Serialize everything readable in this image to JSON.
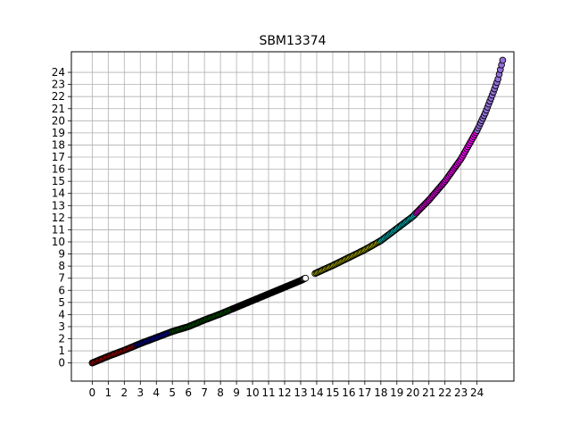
{
  "chart_data": {
    "type": "scatter",
    "title": "SBM13374",
    "xlabel": "",
    "ylabel": "",
    "xlim": [
      -1.3,
      26.3
    ],
    "ylim": [
      -1.5,
      25.7
    ],
    "x_ticks": [
      0,
      1,
      2,
      3,
      4,
      5,
      6,
      7,
      8,
      9,
      10,
      11,
      12,
      13,
      14,
      15,
      16,
      17,
      18,
      19,
      20,
      21,
      22,
      23,
      24
    ],
    "y_ticks": [
      0,
      1,
      2,
      3,
      4,
      5,
      6,
      7,
      8,
      9,
      10,
      11,
      12,
      13,
      14,
      15,
      16,
      17,
      18,
      19,
      20,
      21,
      22,
      23,
      24
    ],
    "grid": true,
    "series": [
      {
        "color": "#ff0000",
        "x_range": [
          0.0,
          2.8
        ]
      },
      {
        "color": "#0000ff",
        "x_range": [
          2.8,
          5.0
        ]
      },
      {
        "color": "#008000",
        "x_range": [
          5.0,
          8.8
        ]
      },
      {
        "color": "#000000",
        "x_range": [
          8.8,
          13.2
        ]
      },
      {
        "color": "#ffffff",
        "x_range": [
          13.2,
          13.3
        ]
      },
      {
        "color": "#ffff00",
        "x_range": [
          13.9,
          18.0
        ]
      },
      {
        "color": "#00ffff",
        "x_range": [
          18.0,
          20.2
        ]
      },
      {
        "color": "#ff00ff",
        "x_range": [
          20.2,
          24.0
        ]
      },
      {
        "color": "#9370db",
        "x_range": [
          24.0,
          25.6
        ]
      }
    ],
    "curve": [
      [
        0.0,
        0.0
      ],
      [
        1.0,
        0.55
      ],
      [
        2.0,
        1.05
      ],
      [
        3.0,
        1.6
      ],
      [
        4.0,
        2.1
      ],
      [
        5.0,
        2.6
      ],
      [
        6.0,
        3.0
      ],
      [
        7.0,
        3.55
      ],
      [
        8.0,
        4.05
      ],
      [
        9.0,
        4.6
      ],
      [
        10.0,
        5.15
      ],
      [
        11.0,
        5.7
      ],
      [
        12.0,
        6.25
      ],
      [
        13.0,
        6.8
      ],
      [
        13.3,
        7.0
      ],
      [
        14.0,
        7.45
      ],
      [
        15.0,
        8.05
      ],
      [
        16.0,
        8.7
      ],
      [
        17.0,
        9.35
      ],
      [
        18.0,
        10.1
      ],
      [
        19.0,
        11.1
      ],
      [
        20.0,
        12.1
      ],
      [
        21.0,
        13.45
      ],
      [
        22.0,
        15.0
      ],
      [
        23.0,
        16.85
      ],
      [
        24.0,
        19.2
      ],
      [
        24.5,
        20.6
      ],
      [
        25.0,
        22.3
      ],
      [
        25.3,
        23.4
      ],
      [
        25.6,
        25.0
      ]
    ]
  }
}
